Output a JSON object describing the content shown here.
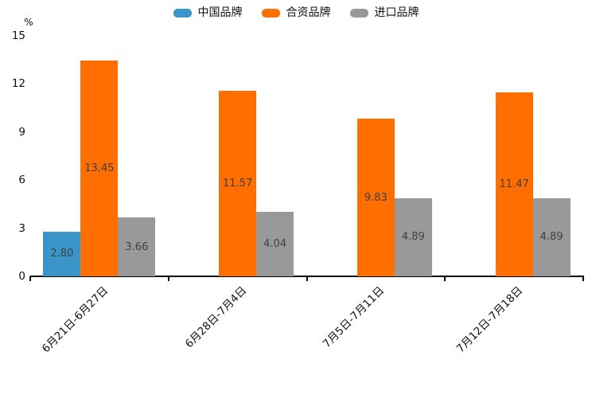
{
  "chart_data": {
    "type": "bar",
    "title": "",
    "unit_label": "%",
    "categories": [
      "6月21日-6月27日",
      "6月28日-7月4日",
      "7月5日-7月11日",
      "7月12日-7月18日"
    ],
    "series": [
      {
        "key": "china-brand",
        "name": "中国品牌",
        "color": "#3A96C8",
        "values": [
          2.8,
          null,
          null,
          null
        ],
        "labels": [
          "2.80",
          "",
          "",
          ""
        ]
      },
      {
        "key": "joint-venture-brand",
        "name": "合资品牌",
        "color": "#FF6E00",
        "values": [
          13.45,
          11.57,
          9.83,
          11.47
        ],
        "labels": [
          "13.45",
          "11.57",
          "9.83",
          "11.47"
        ]
      },
      {
        "key": "import-brand",
        "name": "进口品牌",
        "color": "#999999",
        "values": [
          3.66,
          4.04,
          4.89,
          4.89
        ],
        "labels": [
          "3.66",
          "4.04",
          "4.89",
          "4.89"
        ]
      }
    ],
    "yticks": [
      0,
      3,
      6,
      9,
      12,
      15
    ],
    "ylim": [
      0,
      15
    ],
    "legend_position": "top-center",
    "grid": false,
    "value_label_color": "#404040",
    "axis_color": "#000000"
  }
}
